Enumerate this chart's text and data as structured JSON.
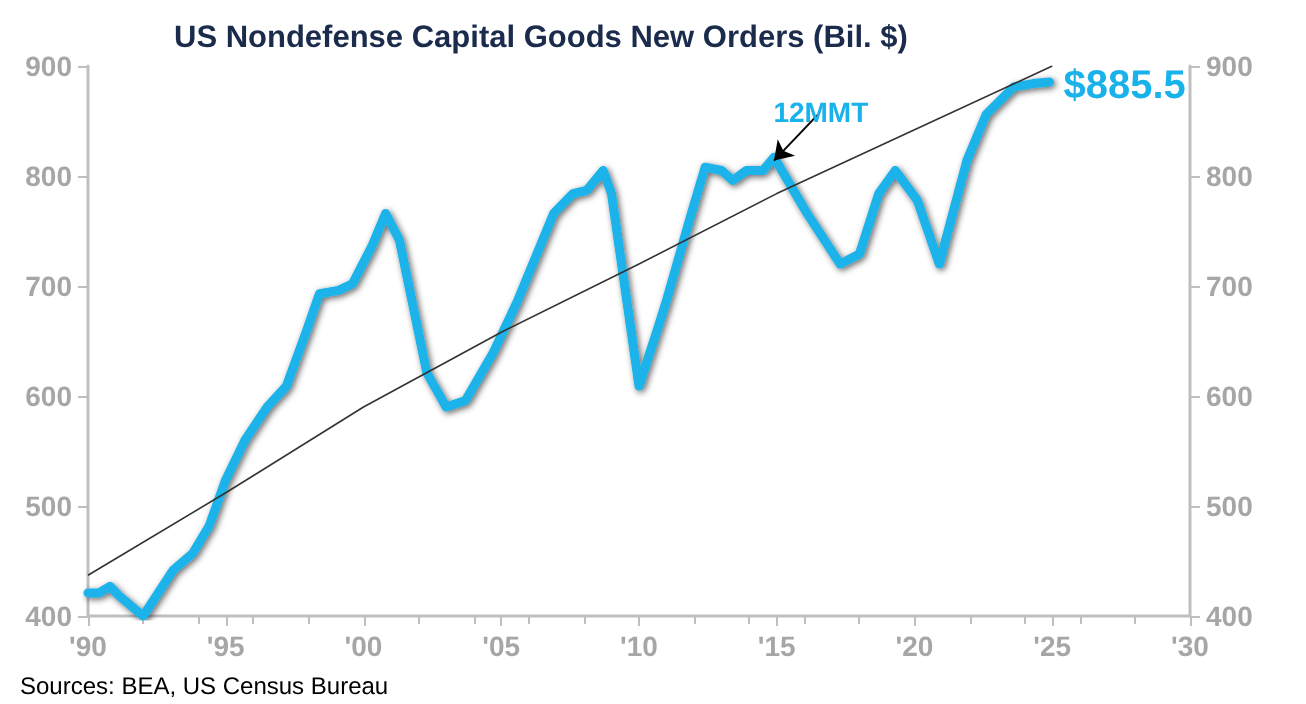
{
  "chart_data": {
    "type": "line",
    "title": "US Nondefense Capital Goods New Orders (Bil. $)",
    "annotations": [
      "Sources: BEA, US Census Bureau",
      {
        "text": "12MMT",
        "x": 2014.9,
        "y": 814
      }
    ],
    "xlim": [
      1990,
      2030
    ],
    "xticks": [
      {
        "value": 1990,
        "label": "'90"
      },
      {
        "value": 1995,
        "label": "'95"
      },
      {
        "value": 2000,
        "label": "'00"
      },
      {
        "value": 2005,
        "label": "'05"
      },
      {
        "value": 2010,
        "label": "'10"
      },
      {
        "value": 2015,
        "label": "'15"
      },
      {
        "value": 2020,
        "label": "'20"
      },
      {
        "value": 2025,
        "label": "'25"
      },
      {
        "value": 2030,
        "label": "'30"
      }
    ],
    "ylim": [
      400,
      900
    ],
    "yticks": [
      400,
      500,
      600,
      700,
      800,
      900
    ],
    "y2lim": [
      400,
      900
    ],
    "y2ticks": [
      400,
      500,
      600,
      700,
      800,
      900
    ],
    "grid": false,
    "marker": "none",
    "line_style": "solid",
    "series": [
      {
        "color": "#1ab2ea",
        "x": [
          1990.0,
          1990.4,
          1990.8,
          1991.1,
          1992.0,
          1993.1,
          1993.8,
          1994.4,
          1995.0,
          1995.7,
          1996.5,
          1997.2,
          1997.9,
          1998.4,
          1999.1,
          1999.6,
          2000.3,
          2000.8,
          2001.3,
          2002.3,
          2003.0,
          2003.7,
          2004.7,
          2005.6,
          2006.9,
          2007.6,
          2008.1,
          2008.7,
          2009.0,
          2010.0,
          2010.7,
          2011.0,
          2011.9,
          2012.4,
          2013.0,
          2013.4,
          2013.9,
          2014.5,
          2014.9,
          2016.1,
          2017.3,
          2018.0,
          2018.7,
          2019.3,
          2020.1,
          2020.9,
          2021.9,
          2022.6,
          2023.6,
          2024.3,
          2024.9
        ],
        "values": [
          421,
          421,
          427,
          419,
          400,
          442,
          457,
          482,
          524,
          560,
          590,
          609,
          657,
          693,
          696,
          702,
          736,
          766,
          742,
          621,
          590,
          596,
          639,
          687,
          766,
          784,
          787,
          805,
          784,
          609,
          663,
          687,
          766,
          808,
          805,
          796,
          805,
          805,
          817,
          766,
          720,
          729,
          784,
          805,
          778,
          720,
          814,
          856,
          881,
          884,
          885.5
        ],
        "value_labels": [
          null,
          null,
          null,
          null,
          null,
          null,
          null,
          null,
          null,
          null,
          null,
          null,
          null,
          null,
          null,
          null,
          null,
          null,
          null,
          null,
          null,
          null,
          null,
          null,
          null,
          null,
          null,
          null,
          null,
          null,
          null,
          null,
          null,
          null,
          null,
          null,
          null,
          null,
          null,
          null,
          null,
          null,
          null,
          null,
          null,
          null,
          null,
          null,
          null,
          null,
          "$885.5"
        ]
      },
      {
        "type": "line",
        "color": "#333333",
        "x": [
          1990,
          1995,
          2000,
          2005,
          2010,
          2015,
          2020,
          2025
        ],
        "values": [
          437,
          512,
          590,
          658,
          720,
          784,
          842,
          900
        ]
      }
    ]
  }
}
